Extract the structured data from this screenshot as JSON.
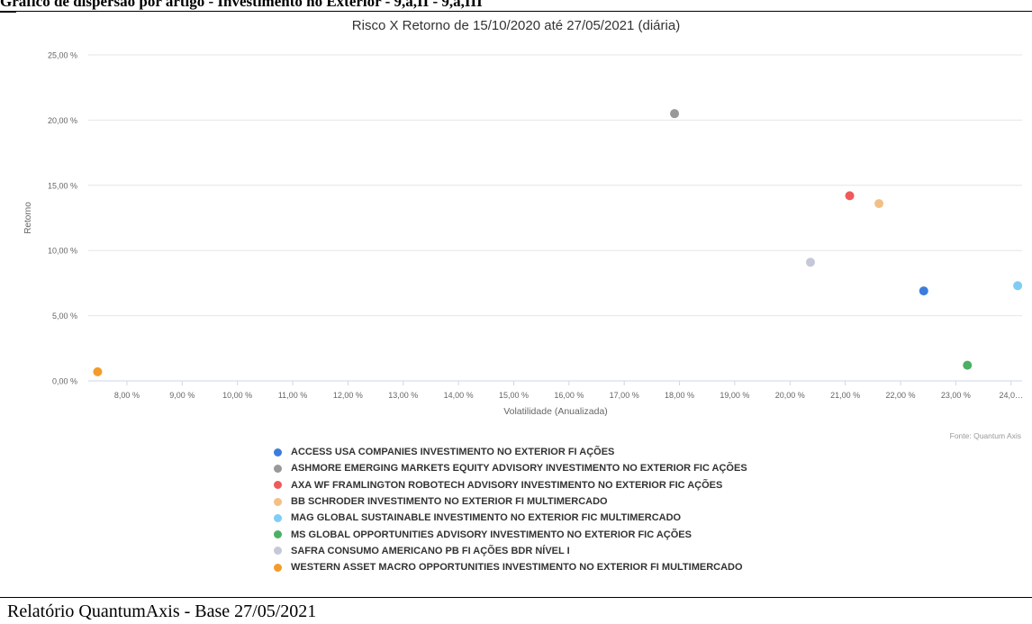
{
  "page": {
    "heading": "Gráfico de dispersão por artigo - Investimento no Exterior - 9,a,II - 9,a,III",
    "footer": "Relatório QuantumAxis - Base 27/05/2021",
    "source": "Fonte: Quantum Axis"
  },
  "chart_data": {
    "type": "scatter",
    "title": "Risco X Retorno de 15/10/2020 até 27/05/2021 (diária)",
    "xlabel": "Volatilidade (Anualizada)",
    "ylabel": "Retorno",
    "xlim": [
      7.3,
      24.2
    ],
    "ylim": [
      0,
      25
    ],
    "x_ticks": [
      "8,00 %",
      "9,00 %",
      "10,00 %",
      "11,00 %",
      "12,00 %",
      "13,00 %",
      "14,00 %",
      "15,00 %",
      "16,00 %",
      "17,00 %",
      "18,00 %",
      "19,00 %",
      "20,00 %",
      "21,00 %",
      "22,00 %",
      "23,00 %",
      "24,0…"
    ],
    "y_ticks": [
      "0,00 %",
      "5,00 %",
      "10,00 %",
      "15,00 %",
      "20,00 %",
      "25,00 %"
    ],
    "grid": true,
    "legend_position": "bottom",
    "series": [
      {
        "name": "ACCESS USA COMPANIES INVESTIMENTO NO EXTERIOR FI AÇÕES",
        "color": "#3b7ddd",
        "x": 22.42,
        "y": 6.9
      },
      {
        "name": "ASHMORE EMERGING MARKETS EQUITY ADVISORY INVESTIMENTO NO EXTERIOR FIC AÇÕES",
        "color": "#999999",
        "x": 17.91,
        "y": 20.5
      },
      {
        "name": "AXA WF FRAMLINGTON ROBOTECH ADVISORY INVESTIMENTO NO EXTERIOR FIC AÇÕES",
        "color": "#f05a5a",
        "x": 21.08,
        "y": 14.2
      },
      {
        "name": "BB SCHRODER INVESTIMENTO NO EXTERIOR FI MULTIMERCADO",
        "color": "#f2c086",
        "x": 21.61,
        "y": 13.6
      },
      {
        "name": "MAG GLOBAL SUSTAINABLE INVESTIMENTO NO EXTERIOR FIC MULTIMERCADO",
        "color": "#7fcdf5",
        "x": 24.12,
        "y": 7.3
      },
      {
        "name": "MS GLOBAL OPPORTUNITIES ADVISORY INVESTIMENTO NO EXTERIOR FIC AÇÕES",
        "color": "#4caf66",
        "x": 23.21,
        "y": 1.2
      },
      {
        "name": "SAFRA CONSUMO AMERICANO PB FI AÇÕES BDR NÍVEL I",
        "color": "#c5c8d8",
        "x": 20.37,
        "y": 9.1
      },
      {
        "name": "WESTERN ASSET MACRO OPPORTUNITIES INVESTIMENTO NO EXTERIOR FI MULTIMERCADO",
        "color": "#f39c2b",
        "x": 7.47,
        "y": 0.7
      }
    ]
  }
}
